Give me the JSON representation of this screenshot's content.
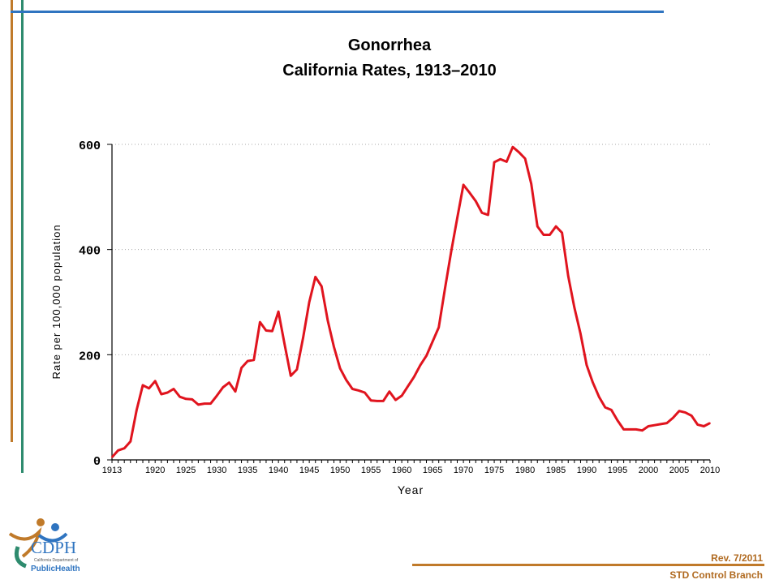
{
  "header": {
    "title_line1": "Gonorrhea",
    "title_line2": "California Rates, 1913–2010"
  },
  "footer": {
    "revision": "Rev. 7/2011",
    "branch": "STD Control Branch"
  },
  "logo": {
    "name": "CDPH",
    "subtitle": "California Department of",
    "tagline": "PublicHealth"
  },
  "colors": {
    "line": "#e0141e",
    "orange_accent": "#c07a2a",
    "green_accent": "#2e8b6e",
    "blue_accent": "#2f74c0"
  },
  "chart_data": {
    "type": "line",
    "title": "Gonorrhea California Rates, 1913–2010",
    "xlabel": "Year",
    "ylabel": "Rate per 100,000 population",
    "xlim": [
      1913,
      2010
    ],
    "ylim": [
      0,
      600
    ],
    "x_ticks": [
      "1913",
      "1920",
      "1925",
      "1930",
      "1935",
      "1940",
      "1945",
      "1950",
      "1955",
      "1960",
      "1965",
      "1970",
      "1975",
      "1980",
      "1985",
      "1990",
      "1995",
      "2000",
      "2005",
      "2010"
    ],
    "y_ticks": [
      "0",
      "200",
      "400",
      "600"
    ],
    "grid": "horizontal dotted",
    "series": [
      {
        "x": [
          1913,
          1914,
          1915,
          1916,
          1917,
          1918,
          1919,
          1920,
          1921,
          1922,
          1923,
          1924,
          1925,
          1926,
          1927,
          1928,
          1929,
          1930,
          1931,
          1932,
          1933,
          1934,
          1935,
          1936,
          1937,
          1938,
          1939,
          1940,
          1941,
          1942,
          1943,
          1944,
          1945,
          1946,
          1947,
          1948,
          1949,
          1950,
          1951,
          1952,
          1953,
          1954,
          1955,
          1956,
          1957,
          1958,
          1959,
          1960,
          1961,
          1962,
          1963,
          1964,
          1965,
          1966,
          1967,
          1968,
          1969,
          1970,
          1971,
          1972,
          1973,
          1974,
          1975,
          1976,
          1977,
          1978,
          1979,
          1980,
          1981,
          1982,
          1983,
          1984,
          1985,
          1986,
          1987,
          1988,
          1989,
          1990,
          1991,
          1992,
          1993,
          1994,
          1995,
          1996,
          1997,
          1998,
          1999,
          2000,
          2001,
          2002,
          2003,
          2004,
          2005,
          2006,
          2007,
          2008,
          2009,
          2010
        ],
        "values": [
          5,
          18,
          22,
          35,
          95,
          142,
          136,
          150,
          125,
          128,
          135,
          120,
          116,
          115,
          105,
          107,
          107,
          122,
          138,
          147,
          130,
          175,
          188,
          190,
          262,
          246,
          245,
          282,
          220,
          160,
          172,
          232,
          300,
          348,
          330,
          265,
          215,
          174,
          152,
          135,
          132,
          128,
          113,
          112,
          112,
          130,
          114,
          122,
          140,
          158,
          180,
          198,
          225,
          252,
          325,
          395,
          460,
          523,
          508,
          492,
          470,
          466,
          566,
          572,
          567,
          595,
          585,
          573,
          525,
          444,
          428,
          428,
          444,
          432,
          350,
          290,
          240,
          180,
          147,
          120,
          100,
          95,
          75,
          58,
          58,
          58,
          56,
          64,
          66,
          68,
          70,
          80,
          93,
          90,
          84,
          67,
          64,
          70
        ]
      }
    ]
  }
}
